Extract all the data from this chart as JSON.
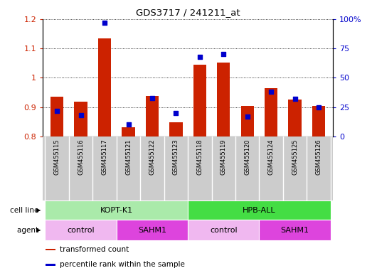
{
  "title": "GDS3717 / 241211_at",
  "samples": [
    "GSM455115",
    "GSM455116",
    "GSM455117",
    "GSM455121",
    "GSM455122",
    "GSM455123",
    "GSM455118",
    "GSM455119",
    "GSM455120",
    "GSM455124",
    "GSM455125",
    "GSM455126"
  ],
  "transformed_count": [
    0.935,
    0.918,
    1.135,
    0.832,
    0.937,
    0.848,
    1.045,
    1.052,
    0.905,
    0.965,
    0.925,
    0.903
  ],
  "percentile_rank": [
    22,
    18,
    97,
    10,
    33,
    20,
    68,
    70,
    17,
    38,
    32,
    25
  ],
  "bar_bottom": 0.8,
  "ylim_left": [
    0.8,
    1.2
  ],
  "ylim_right": [
    0,
    100
  ],
  "yticks_left": [
    0.8,
    0.9,
    1.0,
    1.1,
    1.2
  ],
  "yticks_right": [
    0,
    25,
    50,
    75,
    100
  ],
  "bar_color": "#cc2200",
  "dot_color": "#0000cc",
  "cell_line_groups": [
    {
      "label": "KOPT-K1",
      "start": 0,
      "end": 6,
      "color": "#aaeaaa"
    },
    {
      "label": "HPB-ALL",
      "start": 6,
      "end": 12,
      "color": "#44dd44"
    }
  ],
  "agent_groups": [
    {
      "label": "control",
      "start": 0,
      "end": 3,
      "color": "#f0b8f0"
    },
    {
      "label": "SAHM1",
      "start": 3,
      "end": 6,
      "color": "#dd44dd"
    },
    {
      "label": "control",
      "start": 6,
      "end": 9,
      "color": "#f0b8f0"
    },
    {
      "label": "SAHM1",
      "start": 9,
      "end": 12,
      "color": "#dd44dd"
    }
  ],
  "background_color": "#ffffff",
  "tick_label_color_left": "#cc2200",
  "tick_label_color_right": "#0000cc",
  "xlabel_bg_color": "#cccccc",
  "legend_items": [
    {
      "label": "transformed count",
      "color": "#cc2200"
    },
    {
      "label": "percentile rank within the sample",
      "color": "#0000cc"
    }
  ]
}
